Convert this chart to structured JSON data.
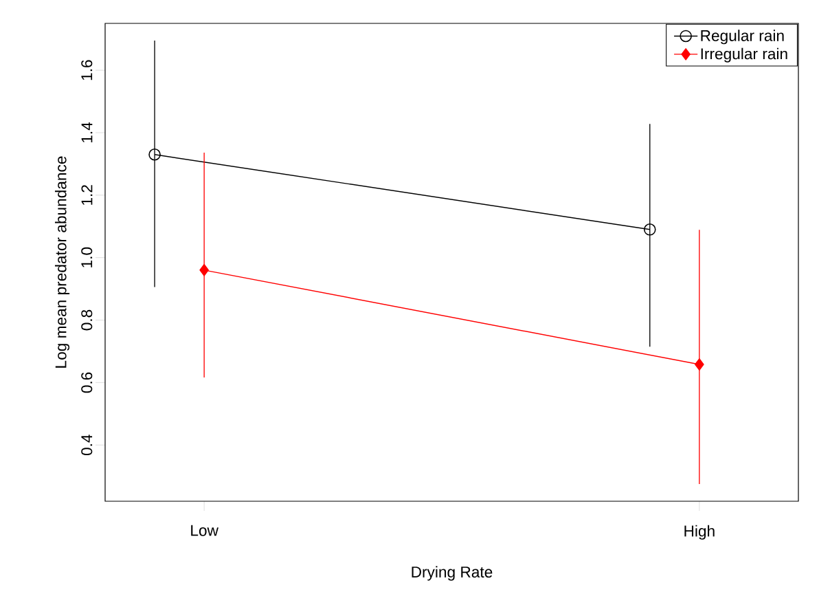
{
  "chart_data": {
    "type": "line",
    "xlabel": "Drying Rate",
    "ylabel": "Log mean predator abundance",
    "categories": [
      "Low",
      "High"
    ],
    "ylim": [
      0.22,
      1.75
    ],
    "yticks": [
      0.4,
      0.6,
      0.8,
      {
        "value": 1.0,
        "label": "1.0"
      },
      1.2,
      1.4,
      1.6
    ],
    "grid": false,
    "legend": "top right",
    "line_style": "solid",
    "series": [
      {
        "name": "Regular rain",
        "color": "#000000",
        "marker": "circle",
        "values": [
          1.33,
          1.09
        ],
        "errors": [
          [
            0.906,
            1.695
          ],
          [
            0.715,
            1.428
          ]
        ]
      },
      {
        "name": "Irregular rain",
        "color": "#ff0000",
        "marker": "diamond",
        "values": [
          0.96,
          0.658
        ],
        "errors": [
          [
            0.616,
            1.336
          ],
          [
            0.275,
            1.089
          ]
        ]
      }
    ]
  }
}
